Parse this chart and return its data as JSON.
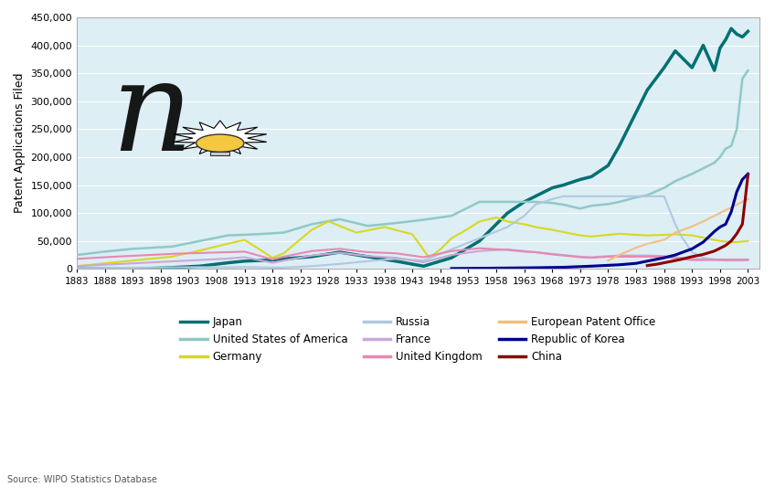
{
  "ylabel": "Patent Applications Filed",
  "xlim": [
    1883,
    2005
  ],
  "ylim": [
    0,
    450000
  ],
  "yticks": [
    0,
    50000,
    100000,
    150000,
    200000,
    250000,
    300000,
    350000,
    400000,
    450000
  ],
  "xticks": [
    1883,
    1888,
    1893,
    1898,
    1903,
    1908,
    1913,
    1918,
    1923,
    1928,
    1933,
    1938,
    1943,
    1948,
    1953,
    1958,
    1963,
    1968,
    1973,
    1978,
    1983,
    1988,
    1993,
    1998,
    2003
  ],
  "source": "Source: WIPO Statistics Database",
  "bg_color": "#ddeef5",
  "series": [
    {
      "name": "Japan",
      "color": "#007070",
      "linewidth": 2.5,
      "years": [
        1883,
        1885,
        1890,
        1895,
        1900,
        1905,
        1910,
        1913,
        1918,
        1920,
        1925,
        1930,
        1935,
        1940,
        1945,
        1950,
        1955,
        1960,
        1963,
        1965,
        1968,
        1970,
        1973,
        1975,
        1978,
        1980,
        1983,
        1985,
        1988,
        1990,
        1993,
        1995,
        1997,
        1998,
        1999,
        2000,
        2001,
        2002,
        2003
      ],
      "values": [
        0,
        0,
        0,
        500,
        2500,
        5000,
        11000,
        14000,
        16000,
        18000,
        22000,
        30000,
        22000,
        14000,
        5000,
        20000,
        50000,
        100000,
        120000,
        130000,
        145000,
        150000,
        160000,
        165000,
        185000,
        220000,
        280000,
        320000,
        360000,
        390000,
        360000,
        400000,
        355000,
        395000,
        410000,
        430000,
        420000,
        415000,
        425000
      ]
    },
    {
      "name": "United States of America",
      "color": "#90c8c8",
      "linewidth": 1.8,
      "years": [
        1883,
        1888,
        1893,
        1900,
        1905,
        1910,
        1915,
        1920,
        1925,
        1930,
        1935,
        1940,
        1945,
        1950,
        1955,
        1960,
        1965,
        1968,
        1970,
        1973,
        1975,
        1978,
        1980,
        1983,
        1985,
        1988,
        1990,
        1993,
        1995,
        1997,
        1998,
        1999,
        2000,
        2001,
        2002,
        2003
      ],
      "values": [
        25000,
        31000,
        36000,
        40000,
        50000,
        60000,
        62000,
        65000,
        80000,
        89000,
        77000,
        82000,
        88000,
        95000,
        120000,
        120000,
        120000,
        118000,
        115000,
        108000,
        113000,
        116000,
        120000,
        128000,
        132000,
        145000,
        157000,
        170000,
        180000,
        190000,
        200000,
        215000,
        220000,
        250000,
        340000,
        355000
      ]
    },
    {
      "name": "Germany",
      "color": "#d8d820",
      "linewidth": 1.5,
      "years": [
        1883,
        1888,
        1893,
        1900,
        1905,
        1910,
        1913,
        1918,
        1920,
        1925,
        1928,
        1933,
        1938,
        1943,
        1946,
        1948,
        1950,
        1953,
        1955,
        1958,
        1960,
        1963,
        1965,
        1968,
        1970,
        1973,
        1975,
        1978,
        1980,
        1983,
        1985,
        1988,
        1990,
        1993,
        1995,
        1998,
        2000,
        2001,
        2002,
        2003
      ],
      "values": [
        5000,
        10000,
        15000,
        22000,
        33000,
        45000,
        52000,
        20000,
        28000,
        70000,
        85000,
        65000,
        75000,
        62000,
        20000,
        35000,
        55000,
        72000,
        85000,
        92000,
        85000,
        80000,
        75000,
        70000,
        66000,
        60000,
        58000,
        61000,
        63000,
        61000,
        60000,
        61000,
        62000,
        60000,
        56000,
        50000,
        48000,
        48000,
        49000,
        50000
      ]
    },
    {
      "name": "Russia",
      "color": "#b0c8e0",
      "linewidth": 1.5,
      "years": [
        1883,
        1890,
        1895,
        1900,
        1905,
        1910,
        1913,
        1918,
        1920,
        1925,
        1930,
        1935,
        1940,
        1945,
        1950,
        1955,
        1960,
        1963,
        1965,
        1968,
        1970,
        1973,
        1975,
        1978,
        1980,
        1983,
        1985,
        1988,
        1990,
        1991,
        1993,
        1995,
        1997,
        1998,
        1999,
        2000,
        2001,
        2002,
        2003
      ],
      "values": [
        1000,
        1900,
        2500,
        2900,
        3200,
        3000,
        3500,
        2400,
        2500,
        5000,
        9000,
        14000,
        18000,
        15000,
        35000,
        55000,
        75000,
        95000,
        115000,
        125000,
        130000,
        130000,
        130000,
        130000,
        130000,
        130000,
        130000,
        130000,
        80000,
        60000,
        30000,
        20000,
        17000,
        16000,
        15000,
        15000,
        15000,
        15000,
        16000
      ]
    },
    {
      "name": "France",
      "color": "#c8a8d8",
      "linewidth": 1.5,
      "years": [
        1883,
        1888,
        1893,
        1900,
        1905,
        1910,
        1913,
        1918,
        1920,
        1925,
        1930,
        1935,
        1940,
        1945,
        1950,
        1955,
        1960,
        1963,
        1965,
        1968,
        1970,
        1973,
        1975,
        1978,
        1980,
        1983,
        1985,
        1988,
        1990,
        1993,
        1995,
        1998,
        2000,
        2001,
        2002,
        2003
      ],
      "values": [
        5000,
        7500,
        10000,
        13500,
        16000,
        18500,
        21000,
        11000,
        15000,
        24000,
        29000,
        23000,
        20000,
        12000,
        25000,
        32000,
        35000,
        32000,
        30000,
        27000,
        25000,
        22000,
        21000,
        23000,
        24000,
        24000,
        24000,
        23000,
        21000,
        18000,
        17000,
        17000,
        17000,
        17000,
        17000,
        17000
      ]
    },
    {
      "name": "United Kingdom",
      "color": "#e888b0",
      "linewidth": 1.5,
      "years": [
        1883,
        1888,
        1893,
        1900,
        1905,
        1910,
        1913,
        1918,
        1920,
        1925,
        1930,
        1935,
        1940,
        1945,
        1950,
        1955,
        1960,
        1963,
        1965,
        1968,
        1970,
        1973,
        1975,
        1978,
        1980,
        1983,
        1985,
        1988,
        1990,
        1993,
        1995,
        1998,
        2000,
        2001,
        2002,
        2003
      ],
      "values": [
        18000,
        21000,
        23500,
        27000,
        28500,
        30000,
        31000,
        17000,
        22000,
        32000,
        36000,
        30000,
        28000,
        21000,
        32000,
        37000,
        34000,
        31000,
        30000,
        26000,
        24000,
        21000,
        20000,
        22000,
        22000,
        22000,
        22000,
        22000,
        19000,
        16000,
        16000,
        16000,
        16000,
        16000,
        16000,
        16000
      ]
    },
    {
      "name": "European Patent Office",
      "color": "#f0c080",
      "linewidth": 1.5,
      "years": [
        1978,
        1980,
        1983,
        1985,
        1988,
        1990,
        1993,
        1995,
        1998,
        2000,
        2001,
        2002,
        2003
      ],
      "values": [
        15000,
        25000,
        38000,
        45000,
        52000,
        65000,
        76000,
        85000,
        100000,
        110000,
        115000,
        120000,
        125000
      ]
    },
    {
      "name": "Republic of Korea",
      "color": "#000090",
      "linewidth": 2.2,
      "years": [
        1950,
        1955,
        1960,
        1965,
        1970,
        1975,
        1980,
        1983,
        1985,
        1988,
        1990,
        1993,
        1995,
        1997,
        1998,
        1999,
        2000,
        2001,
        2002,
        2003
      ],
      "values": [
        800,
        1200,
        1700,
        2200,
        3000,
        5000,
        7500,
        10000,
        14000,
        20000,
        25000,
        36000,
        48000,
        67000,
        75000,
        80000,
        102000,
        138000,
        160000,
        170000
      ]
    },
    {
      "name": "China",
      "color": "#8b0000",
      "linewidth": 2.2,
      "years": [
        1985,
        1987,
        1989,
        1991,
        1993,
        1995,
        1997,
        1999,
        2000,
        2001,
        2002,
        2003
      ],
      "values": [
        6000,
        9000,
        13000,
        17000,
        22000,
        26000,
        32000,
        42000,
        50000,
        63000,
        80000,
        168000
      ]
    }
  ],
  "legend": [
    {
      "label": "Japan",
      "color": "#007070"
    },
    {
      "label": "United States of America",
      "color": "#90c8c8"
    },
    {
      "label": "Germany",
      "color": "#d8d820"
    },
    {
      "label": "Russia",
      "color": "#b0c8e0"
    },
    {
      "label": "France",
      "color": "#c8a8d8"
    },
    {
      "label": "United Kingdom",
      "color": "#e888b0"
    },
    {
      "label": "European Patent Office",
      "color": "#f0c080"
    },
    {
      "label": "Republic of Korea",
      "color": "#000090"
    },
    {
      "label": "China",
      "color": "#8b0000"
    }
  ]
}
